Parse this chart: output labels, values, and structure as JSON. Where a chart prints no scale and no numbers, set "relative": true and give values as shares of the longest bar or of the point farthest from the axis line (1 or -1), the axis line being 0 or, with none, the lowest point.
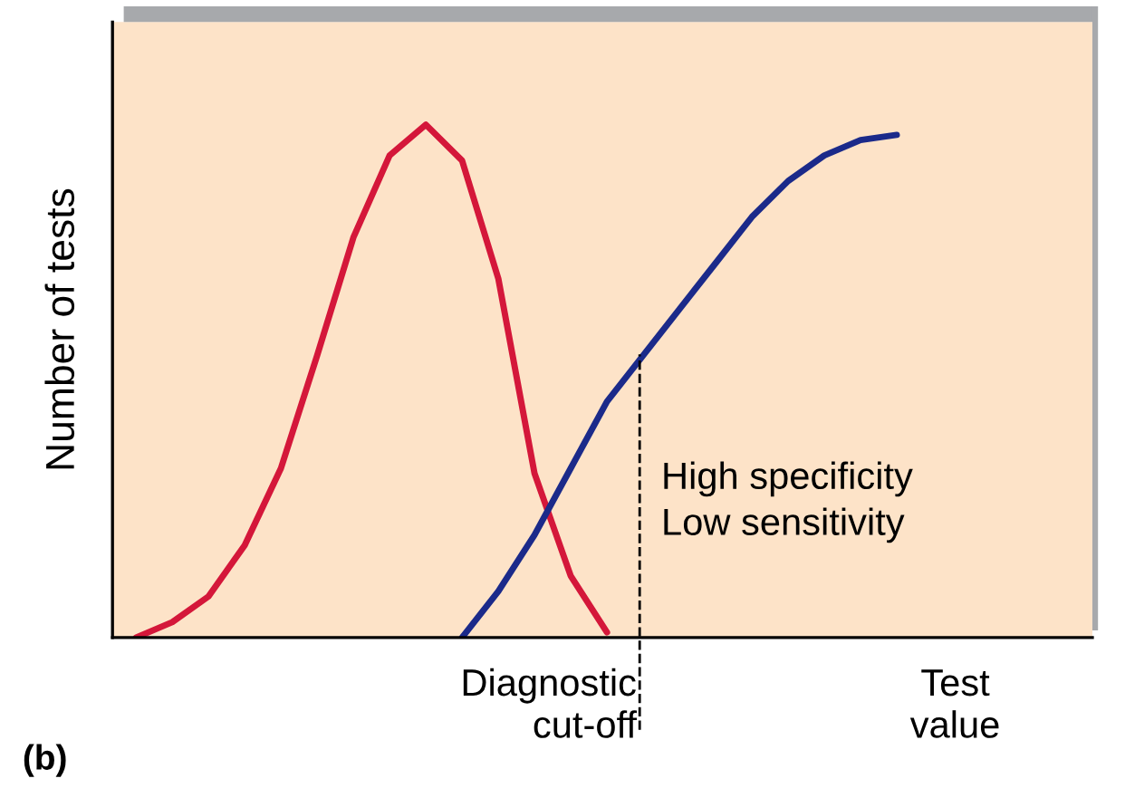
{
  "chart_data": {
    "type": "line",
    "relative": true,
    "ylabel": "Number of tests",
    "xlabel": "Test value",
    "categories": [
      null,
      null,
      null,
      null,
      null,
      null,
      null,
      null,
      null,
      null,
      null,
      null,
      null,
      null,
      null,
      null,
      null,
      null,
      null,
      null,
      null,
      null,
      null,
      null,
      null,
      null,
      null,
      null
    ],
    "series": [
      {
        "color": "#d4173a",
        "values": [
          null,
          0.0,
          0.03,
          0.08,
          0.18,
          0.33,
          0.55,
          0.78,
          0.94,
          1.0,
          0.93,
          0.7,
          0.32,
          0.12,
          0.01,
          null,
          null,
          null,
          null,
          null,
          null,
          null,
          null,
          null,
          null,
          null,
          null,
          null
        ]
      },
      {
        "color": "#1b2a8a",
        "values": [
          null,
          null,
          null,
          null,
          null,
          null,
          null,
          null,
          null,
          null,
          0.0,
          0.09,
          0.2,
          0.33,
          0.46,
          0.55,
          0.64,
          0.73,
          0.82,
          0.89,
          0.94,
          0.97,
          0.98,
          null,
          null,
          null,
          null,
          null
        ]
      }
    ],
    "annotations": [
      "High specificity\nLow sensitivity",
      "(b)",
      "Diagnostic\ncut-off"
    ],
    "marker": "none",
    "line_style": "solid"
  }
}
